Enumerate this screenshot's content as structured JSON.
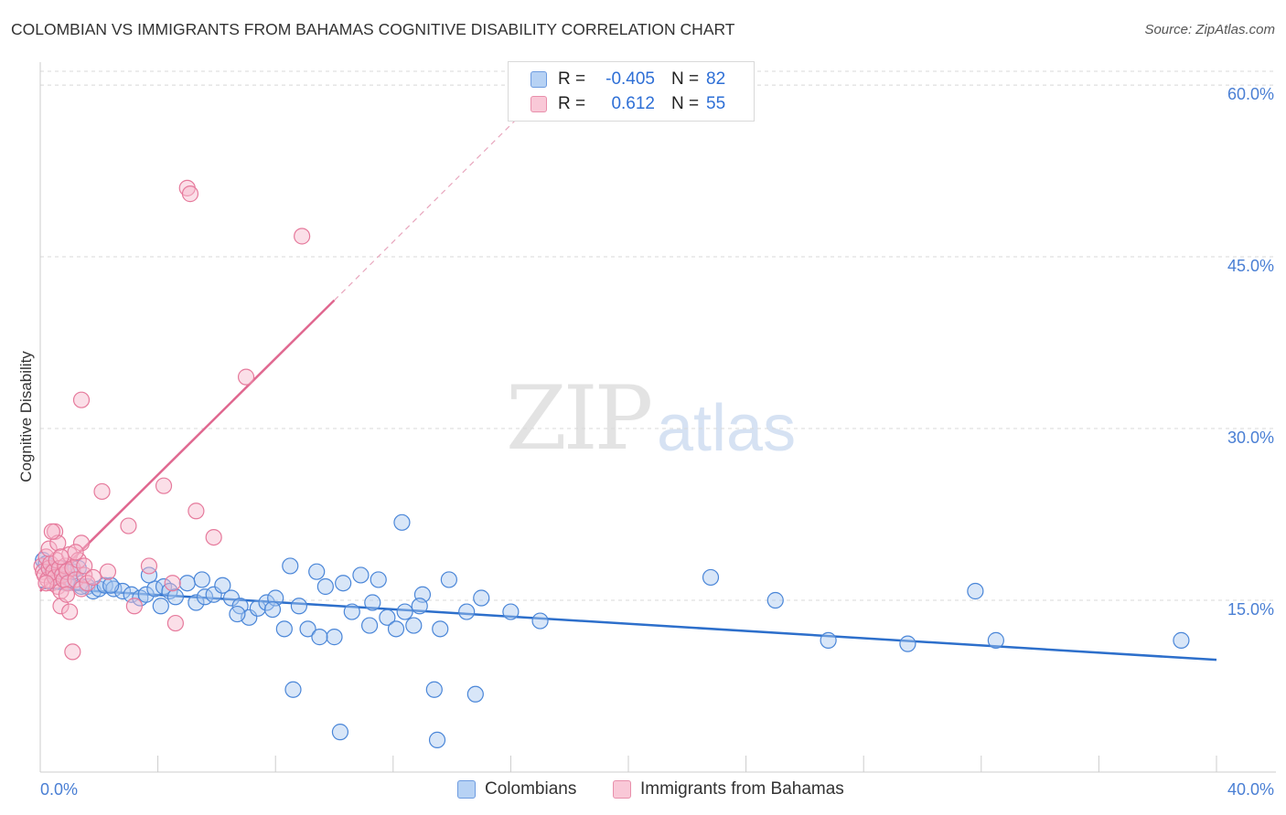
{
  "header": {
    "title": "COLOMBIAN VS IMMIGRANTS FROM BAHAMAS COGNITIVE DISABILITY CORRELATION CHART",
    "source": "Source: ZipAtlas.com"
  },
  "watermark": {
    "zip": "ZIP",
    "atlas": "atlas"
  },
  "legend": {
    "rows": [
      {
        "r_label": "R =",
        "r_value": "-0.405",
        "n_label": "N =",
        "n_value": "82"
      },
      {
        "r_label": "R =",
        "r_value": "0.612",
        "n_label": "N =",
        "n_value": "55"
      }
    ]
  },
  "colors": {
    "blue_fill": "#a8c8f0",
    "blue_stroke": "#4a86d8",
    "blue_line": "#2d6fcb",
    "pink_fill": "#f7b8cb",
    "pink_stroke": "#e67a9c",
    "pink_line": "#e06890",
    "grid": "#d8d8d8",
    "tick_text": "#4a7fd4"
  },
  "chart_data": {
    "type": "scatter",
    "title": "COLOMBIAN VS IMMIGRANTS FROM BAHAMAS COGNITIVE DISABILITY CORRELATION CHART",
    "xlabel": "",
    "ylabel": "Cognitive Disability",
    "xlim": [
      0,
      40
    ],
    "ylim": [
      0,
      62
    ],
    "x_tick_labels": [
      "0.0%",
      "40.0%"
    ],
    "y_ticks": [
      15,
      30,
      45,
      60
    ],
    "y_tick_labels": [
      "15.0%",
      "30.0%",
      "45.0%",
      "60.0%"
    ],
    "grid": true,
    "legend_position": "top-center",
    "series": [
      {
        "name": "Colombians",
        "r": -0.405,
        "n": 82,
        "trend": {
          "x": [
            0,
            40
          ],
          "y": [
            16.1,
            9.8
          ]
        },
        "points": [
          [
            0.1,
            18.5
          ],
          [
            0.2,
            18.2
          ],
          [
            0.3,
            17.8
          ],
          [
            0.4,
            17.5
          ],
          [
            0.5,
            17.2
          ],
          [
            0.6,
            17.0
          ],
          [
            0.7,
            17.8
          ],
          [
            0.8,
            16.8
          ],
          [
            0.9,
            16.5
          ],
          [
            1.0,
            16.8
          ],
          [
            1.1,
            17.5
          ],
          [
            1.3,
            17.8
          ],
          [
            1.6,
            16.2
          ],
          [
            1.8,
            15.8
          ],
          [
            2.0,
            16.0
          ],
          [
            2.2,
            16.3
          ],
          [
            2.5,
            16.0
          ],
          [
            2.8,
            15.8
          ],
          [
            3.1,
            15.5
          ],
          [
            3.4,
            15.2
          ],
          [
            3.6,
            15.5
          ],
          [
            3.9,
            16.0
          ],
          [
            4.2,
            16.2
          ],
          [
            4.4,
            15.8
          ],
          [
            4.6,
            15.3
          ],
          [
            5.0,
            16.5
          ],
          [
            5.3,
            14.8
          ],
          [
            5.6,
            15.3
          ],
          [
            5.9,
            15.5
          ],
          [
            6.2,
            16.3
          ],
          [
            6.5,
            15.2
          ],
          [
            6.8,
            14.5
          ],
          [
            7.1,
            13.5
          ],
          [
            7.4,
            14.3
          ],
          [
            7.7,
            14.8
          ],
          [
            8.0,
            15.2
          ],
          [
            8.3,
            12.5
          ],
          [
            8.5,
            18.0
          ],
          [
            8.8,
            14.5
          ],
          [
            9.1,
            12.5
          ],
          [
            9.4,
            17.5
          ],
          [
            9.7,
            16.2
          ],
          [
            10.0,
            11.8
          ],
          [
            10.3,
            16.5
          ],
          [
            10.6,
            14.0
          ],
          [
            10.9,
            17.2
          ],
          [
            11.2,
            12.8
          ],
          [
            11.5,
            16.8
          ],
          [
            11.8,
            13.5
          ],
          [
            12.1,
            12.5
          ],
          [
            12.4,
            14.0
          ],
          [
            12.7,
            12.8
          ],
          [
            13.0,
            15.5
          ],
          [
            13.6,
            12.5
          ],
          [
            13.9,
            16.8
          ],
          [
            14.5,
            14.0
          ],
          [
            15.0,
            15.2
          ],
          [
            16.0,
            14.0
          ],
          [
            17.0,
            13.2
          ],
          [
            22.8,
            17.0
          ],
          [
            25.0,
            15.0
          ],
          [
            26.8,
            11.5
          ],
          [
            29.5,
            11.2
          ],
          [
            31.8,
            15.8
          ],
          [
            32.5,
            11.5
          ],
          [
            38.8,
            11.5
          ],
          [
            4.1,
            14.5
          ],
          [
            6.7,
            13.8
          ],
          [
            8.6,
            7.2
          ],
          [
            10.2,
            3.5
          ],
          [
            13.4,
            7.2
          ],
          [
            14.8,
            6.8
          ],
          [
            13.5,
            2.8
          ],
          [
            12.3,
            21.8
          ],
          [
            1.4,
            16.2
          ],
          [
            2.4,
            16.3
          ],
          [
            3.7,
            17.2
          ],
          [
            5.5,
            16.8
          ],
          [
            7.9,
            14.2
          ],
          [
            9.5,
            11.8
          ],
          [
            11.3,
            14.8
          ],
          [
            12.9,
            14.5
          ]
        ]
      },
      {
        "name": "Immigrants from Bahamas",
        "r": 0.612,
        "n": 55,
        "trend": {
          "x": [
            0,
            10
          ],
          "y": [
            15.8,
            41.2
          ]
        },
        "trend_dashed": {
          "x": [
            10,
            16.5
          ],
          "y": [
            41.2,
            57.8
          ]
        },
        "points": [
          [
            0.05,
            18.0
          ],
          [
            0.1,
            17.5
          ],
          [
            0.15,
            17.2
          ],
          [
            0.2,
            18.8
          ],
          [
            0.25,
            16.8
          ],
          [
            0.3,
            17.8
          ],
          [
            0.35,
            18.2
          ],
          [
            0.4,
            16.5
          ],
          [
            0.45,
            17.5
          ],
          [
            0.5,
            17.0
          ],
          [
            0.55,
            18.5
          ],
          [
            0.6,
            16.2
          ],
          [
            0.65,
            17.8
          ],
          [
            0.7,
            15.8
          ],
          [
            0.75,
            17.2
          ],
          [
            0.8,
            16.8
          ],
          [
            0.85,
            18.0
          ],
          [
            0.9,
            17.5
          ],
          [
            0.95,
            16.5
          ],
          [
            1.0,
            19.0
          ],
          [
            1.1,
            17.8
          ],
          [
            1.2,
            16.8
          ],
          [
            1.3,
            18.5
          ],
          [
            1.4,
            16.0
          ],
          [
            1.5,
            17.2
          ],
          [
            0.3,
            19.5
          ],
          [
            0.5,
            21.0
          ],
          [
            0.6,
            20.0
          ],
          [
            1.4,
            20.0
          ],
          [
            1.5,
            18.0
          ],
          [
            1.6,
            16.5
          ],
          [
            1.8,
            17.0
          ],
          [
            0.7,
            14.5
          ],
          [
            1.0,
            14.0
          ],
          [
            1.1,
            10.5
          ],
          [
            1.4,
            32.5
          ],
          [
            2.1,
            24.5
          ],
          [
            3.0,
            21.5
          ],
          [
            3.7,
            18.0
          ],
          [
            4.2,
            25.0
          ],
          [
            4.5,
            16.5
          ],
          [
            4.6,
            13.0
          ],
          [
            5.0,
            51.0
          ],
          [
            5.1,
            50.5
          ],
          [
            5.3,
            22.8
          ],
          [
            5.9,
            20.5
          ],
          [
            7.0,
            34.5
          ],
          [
            8.9,
            46.8
          ],
          [
            3.2,
            14.5
          ],
          [
            2.3,
            17.5
          ],
          [
            0.9,
            15.5
          ],
          [
            1.2,
            19.2
          ],
          [
            0.2,
            16.5
          ],
          [
            0.4,
            21.0
          ],
          [
            0.7,
            18.8
          ]
        ]
      }
    ]
  },
  "bottom_legend": {
    "items": [
      {
        "label": "Colombians"
      },
      {
        "label": "Immigrants from Bahamas"
      }
    ]
  }
}
